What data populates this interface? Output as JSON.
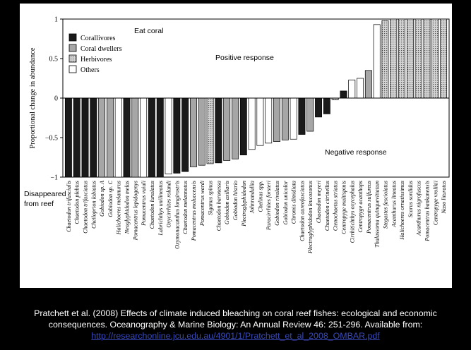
{
  "chart_data": {
    "type": "bar",
    "ylabel": "Proportional change in abundance",
    "ylim": [
      -1,
      1
    ],
    "yticks": [
      1,
      0.5,
      0,
      -0.5,
      -1
    ],
    "ytick_labels": [
      "1",
      "0.5",
      "0",
      "−0.5",
      "−1"
    ],
    "legend": {
      "placement": "top-left",
      "entries": [
        {
          "group": "corallivore",
          "label": "Corallivores",
          "fill": "#1a1a1a",
          "pattern": "solid"
        },
        {
          "group": "dweller",
          "label": "Coral dwellers",
          "fill": "#a6a6a6",
          "pattern": "solid"
        },
        {
          "group": "herbivore",
          "label": "Herbivores",
          "fill": "#d4d4d4",
          "pattern": "dots"
        },
        {
          "group": "other",
          "label": "Others",
          "fill": "#ffffff",
          "pattern": "solid"
        }
      ]
    },
    "categories": [
      "Chaetodon trifascialis",
      "Chaetodon plebius",
      "Chaetodon trifasciatus",
      "Cheiloprion labiatus",
      "Gobiodon sp. A",
      "Gobiodon sp. C",
      "Halichoeres melanurus",
      "Neoglyphidodon melas",
      "Pomacentrus lepidogenys",
      "Pomacentrus vaiuli",
      "Chaetodon lunulatus",
      "Labrichthys unilineatus",
      "Oxycirrhites rolandi",
      "Oxymonacanthus longirostris",
      "Chaetodon melannotus",
      "Pomacentrus moluccensis",
      "Pomacentrus wardi",
      "Siganus spinus",
      "Chaetodon baronessa",
      "Gobiodon axillaris",
      "Gobiodon histrio",
      "Plectroglyphidodon",
      "Johnrandallia",
      "Chelinus spp.",
      "Paracirrhites forsteri",
      "Gobiodon rivulatus",
      "Gobiodon unicolor",
      "Chromis dimidiata",
      "Chaetodon aureofasciatus",
      "Plectroglyphidodon leucozonus",
      "Chaetodon meyeri",
      "Chaetodon citrinellus",
      "Ctenochaetus striatus",
      "Centropyge multispinis",
      "Cirrhitichthys oxycephalus",
      "Centropyge acanthops",
      "Pomacentrus sulfureus",
      "Thalassoma quinquevittatum",
      "Stegastes fasciolatus",
      "Acanthurus lineatus",
      "Halichoeres ornatissimus",
      "Scarus sordidus",
      "Acanthurus nigrofuscus",
      "Pomacentrus bankanensis",
      "Centropyge vrolikii",
      "Naso lituratus"
    ],
    "values": [
      -1.0,
      -1.0,
      -1.0,
      -1.0,
      -1.0,
      -1.0,
      -1.0,
      -1.0,
      -1.0,
      -1.0,
      -1.0,
      -1.0,
      -0.96,
      -0.95,
      -0.93,
      -0.87,
      -0.85,
      -0.83,
      -0.82,
      -0.79,
      -0.77,
      -0.72,
      -0.65,
      -0.6,
      -0.57,
      -0.55,
      -0.53,
      -0.52,
      -0.46,
      -0.42,
      -0.24,
      -0.2,
      -0.02,
      0.09,
      0.23,
      0.25,
      0.35,
      0.93,
      0.98,
      1.0,
      1.0,
      1.0,
      1.0,
      1.0,
      1.0,
      1.0
    ],
    "groups": [
      "corallivore",
      "corallivore",
      "corallivore",
      "corallivore",
      "dweller",
      "dweller",
      "other",
      "corallivore",
      "dweller",
      "other",
      "corallivore",
      "corallivore",
      "other",
      "corallivore",
      "corallivore",
      "dweller",
      "dweller",
      "herbivore",
      "corallivore",
      "dweller",
      "dweller",
      "corallivore",
      "other",
      "other",
      "other",
      "dweller",
      "dweller",
      "other",
      "corallivore",
      "dweller",
      "corallivore",
      "corallivore",
      "herbivore",
      "corallivore",
      "other",
      "other",
      "dweller",
      "other",
      "herbivore",
      "herbivore",
      "herbivore",
      "herbivore",
      "herbivore",
      "herbivore",
      "herbivore",
      "herbivore"
    ]
  },
  "annotations": {
    "eat_coral": "Eat coral",
    "positive": "Positive response",
    "negative": "Negative response",
    "disappeared_1": "Disappeared",
    "disappeared_2": "from reef"
  },
  "caption": {
    "line1": "Pratchett et al. (2008) Effects of climate induced bleaching on coral reef fishes: ecological and economic",
    "line2": "consequences. Oceanography & Marine Biology: An Annual Review 46: 251-296. Available from:",
    "url": "http://researchonline.jcu.edu.au/4901/1/Pratchett_et_al_2008_OMBAR.pdf"
  }
}
